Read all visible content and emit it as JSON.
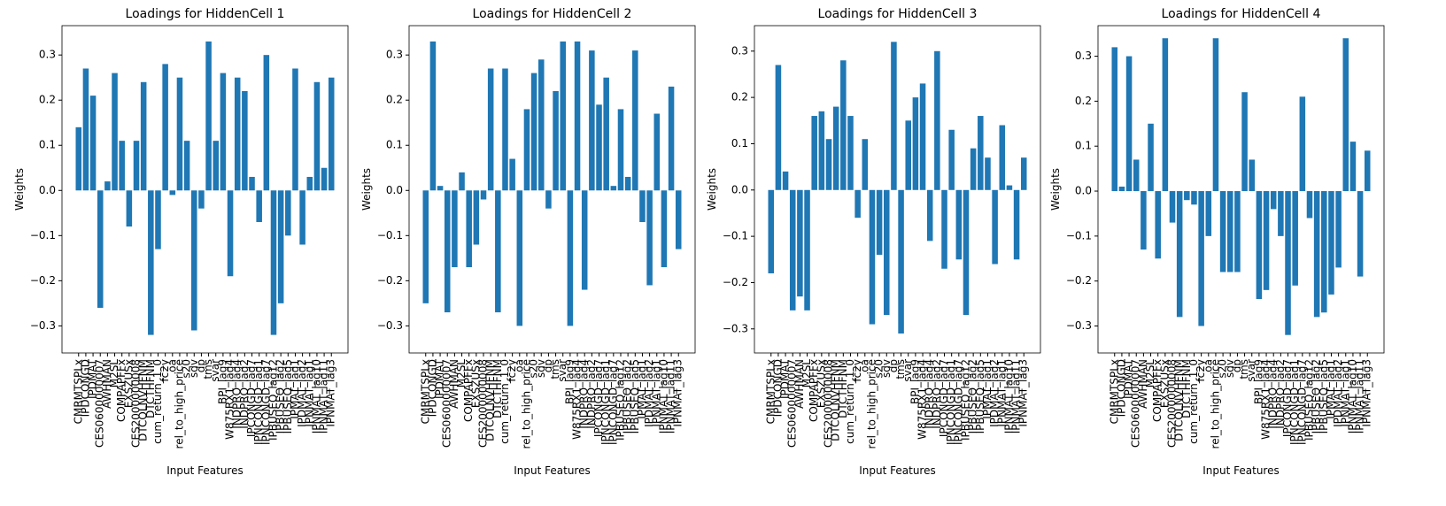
{
  "chart_data": [
    {
      "type": "bar",
      "title": "Loadings for HiddenCell 1",
      "xlabel": "Input Features",
      "ylabel": "Weights",
      "color": "#1f77b4",
      "categories": [
        "CMRMTSPLx",
        "IPDCONGD",
        "IPDMAT",
        "CES0600000007",
        "AWHMAN",
        "M2SL",
        "COMPAPFFx",
        "EXSZUSx",
        "CES2000000008",
        "DTCOLNVHFNM",
        "DTCTHFNM",
        "cum_return_1_0",
        "fc2y",
        "oa",
        "rel_to_high_price",
        "s20",
        "sdv",
        "dp",
        "tms",
        "svar",
        "BPI_lag9",
        "W875RX1_lag4",
        "INDPRO_lag4",
        "INDPRO_lag2",
        "IPCONGD_lag7",
        "IPNCONGD_lag1",
        "IPNCONGD_lag7",
        "IPBUSEQ_lag12",
        "IPBUSEQ_lag2",
        "IPBUSEQ_lag5",
        "IPMAT_lag1",
        "IPDMAT_lag2",
        "IPNMAT_lag1",
        "IPNMAT_lag10",
        "IPNMAT_lag11",
        "IPNMAT_lag3"
      ],
      "values": [
        0.14,
        0.27,
        0.21,
        -0.26,
        0.02,
        0.26,
        0.11,
        -0.08,
        0.11,
        0.24,
        -0.32,
        -0.13,
        0.28,
        -0.01,
        0.25,
        0.11,
        -0.31,
        -0.04,
        0.33,
        0.11,
        0.26,
        -0.19,
        0.25,
        0.22,
        0.03,
        -0.07,
        0.3,
        -0.32,
        -0.25,
        -0.1,
        0.27,
        -0.12,
        0.03,
        0.24,
        0.05,
        0.25
      ],
      "ylim": [
        -0.36,
        0.365
      ],
      "yticks": [
        {
          "value": -0.3,
          "label": "−0.3"
        },
        {
          "value": -0.2,
          "label": "−0.2"
        },
        {
          "value": -0.1,
          "label": "−0.1"
        },
        {
          "value": 0,
          "label": "0.0"
        },
        {
          "value": 0.1,
          "label": "0.1"
        },
        {
          "value": 0.2,
          "label": "0.2"
        },
        {
          "value": 0.3,
          "label": "0.3"
        }
      ]
    },
    {
      "type": "bar",
      "title": "Loadings for HiddenCell 2",
      "xlabel": "Input Features",
      "ylabel": "Weights",
      "color": "#1f77b4",
      "categories": [
        "CMRMTSPLx",
        "IPDCONGD",
        "IPDMAT",
        "CES0600000007",
        "AWHMAN",
        "M2SL",
        "COMPAPFFx",
        "EXSZUSx",
        "CES2000000008",
        "DTCOLNVHFNM",
        "DTCTHFNM",
        "cum_return_1_0",
        "fc2y",
        "oa",
        "rel_to_high_price",
        "s20",
        "sdv",
        "dp",
        "tms",
        "svar",
        "BPI_lag9",
        "W875RX1_lag4",
        "INDPRO_lag4",
        "INDPRO_lag2",
        "IPCONGD_lag7",
        "IPNCONGD_lag1",
        "IPNCONGD_lag7",
        "IPBUSEQ_lag12",
        "IPBUSEQ_lag2",
        "IPBUSEQ_lag5",
        "IPMAT_lag1",
        "IPDMAT_lag2",
        "IPNMAT_lag1",
        "IPNMAT_lag10",
        "IPNMAT_lag11",
        "IPNMAT_lag3"
      ],
      "values": [
        -0.25,
        0.33,
        0.01,
        -0.27,
        -0.17,
        0.04,
        -0.17,
        -0.12,
        -0.02,
        0.27,
        -0.27,
        0.27,
        0.07,
        -0.3,
        0.18,
        0.26,
        0.29,
        -0.04,
        0.22,
        0.33,
        -0.3,
        0.33,
        -0.22,
        0.31,
        0.19,
        0.25,
        0.01,
        0.18,
        0.03,
        0.31,
        -0.07,
        -0.21,
        0.17,
        -0.17,
        0.23,
        -0.13
      ],
      "ylim": [
        -0.36,
        0.365
      ],
      "yticks": [
        {
          "value": -0.3,
          "label": "−0.3"
        },
        {
          "value": -0.2,
          "label": "−0.2"
        },
        {
          "value": -0.1,
          "label": "−0.1"
        },
        {
          "value": 0,
          "label": "0.0"
        },
        {
          "value": 0.1,
          "label": "0.1"
        },
        {
          "value": 0.2,
          "label": "0.2"
        },
        {
          "value": 0.3,
          "label": "0.3"
        }
      ]
    },
    {
      "type": "bar",
      "title": "Loadings for HiddenCell 3",
      "xlabel": "Input Features",
      "ylabel": "Weights",
      "color": "#1f77b4",
      "categories": [
        "CMRMTSPLx",
        "IPDCONGD",
        "IPDMAT",
        "CES0600000007",
        "AWHMAN",
        "M2SL",
        "COMPAPFFx",
        "EXSZUSx",
        "CES2000000008",
        "DTCOLNVHFNM",
        "DTCTHFNM",
        "cum_return_1_0",
        "fc2y",
        "oa",
        "rel_to_high_price",
        "s20",
        "sdv",
        "dp",
        "tms",
        "svar",
        "BPI_lag9",
        "W875RX1_lag4",
        "INDPRO_lag4",
        "INDPRO_lag2",
        "IPCONGD_lag7",
        "IPNCONGD_lag1",
        "IPNCONGD_lag7",
        "IPBUSEQ_lag12",
        "IPBUSEQ_lag2",
        "IPBUSEQ_lag5",
        "IPMAT_lag1",
        "IPDMAT_lag2",
        "IPNMAT_lag1",
        "IPNMAT_lag10",
        "IPNMAT_lag11",
        "IPNMAT_lag3"
      ],
      "values": [
        -0.18,
        0.27,
        0.04,
        -0.26,
        -0.23,
        -0.26,
        0.16,
        0.17,
        0.11,
        0.18,
        0.28,
        0.16,
        -0.06,
        0.11,
        -0.29,
        -0.14,
        -0.27,
        0.32,
        -0.31,
        0.15,
        0.2,
        0.23,
        -0.11,
        0.3,
        -0.17,
        0.13,
        -0.15,
        -0.27,
        0.09,
        0.16,
        0.07,
        -0.16,
        0.14,
        0.01,
        -0.15,
        0.07
      ],
      "ylim": [
        -0.352,
        0.355
      ],
      "yticks": [
        {
          "value": -0.3,
          "label": "−0.3"
        },
        {
          "value": -0.2,
          "label": "−0.2"
        },
        {
          "value": -0.1,
          "label": "−0.1"
        },
        {
          "value": 0,
          "label": "0.0"
        },
        {
          "value": 0.1,
          "label": "0.1"
        },
        {
          "value": 0.2,
          "label": "0.2"
        },
        {
          "value": 0.3,
          "label": "0.3"
        }
      ]
    },
    {
      "type": "bar",
      "title": "Loadings for HiddenCell 4",
      "xlabel": "Input Features",
      "ylabel": "Weights",
      "color": "#1f77b4",
      "categories": [
        "CMRMTSPLx",
        "IPDCONGD",
        "IPDMAT",
        "CES0600000007",
        "AWHMAN",
        "M2SL",
        "COMPAPFFx",
        "EXSZUSx",
        "CES2000000008",
        "DTCOLNVHFNM",
        "DTCTHFNM",
        "cum_return_1_0",
        "fc2y",
        "oa",
        "rel_to_high_price",
        "s20",
        "sdv",
        "dp",
        "tms",
        "svar",
        "BPI_lag9",
        "W875RX1_lag4",
        "INDPRO_lag4",
        "INDPRO_lag2",
        "IPCONGD_lag7",
        "IPNCONGD_lag1",
        "IPNCONGD_lag7",
        "IPBUSEQ_lag12",
        "IPBUSEQ_lag2",
        "IPBUSEQ_lag5",
        "IPMAT_lag1",
        "IPDMAT_lag2",
        "IPNMAT_lag1",
        "IPNMAT_lag10",
        "IPNMAT_lag11",
        "IPNMAT_lag3"
      ],
      "values": [
        0.32,
        0.01,
        0.3,
        0.07,
        -0.13,
        0.15,
        -0.15,
        0.34,
        -0.07,
        -0.28,
        -0.02,
        -0.03,
        -0.3,
        -0.1,
        0.34,
        -0.18,
        -0.18,
        -0.18,
        0.22,
        0.07,
        -0.24,
        -0.22,
        -0.04,
        -0.1,
        -0.32,
        -0.21,
        0.21,
        -0.06,
        -0.28,
        -0.27,
        -0.23,
        -0.17,
        0.34,
        0.11,
        -0.19,
        0.09
      ],
      "ylim": [
        -0.36,
        0.368
      ],
      "yticks": [
        {
          "value": -0.3,
          "label": "−0.3"
        },
        {
          "value": -0.2,
          "label": "−0.2"
        },
        {
          "value": -0.1,
          "label": "−0.1"
        },
        {
          "value": 0,
          "label": "0.0"
        },
        {
          "value": 0.1,
          "label": "0.1"
        },
        {
          "value": 0.2,
          "label": "0.2"
        },
        {
          "value": 0.3,
          "label": "0.3"
        }
      ]
    }
  ]
}
